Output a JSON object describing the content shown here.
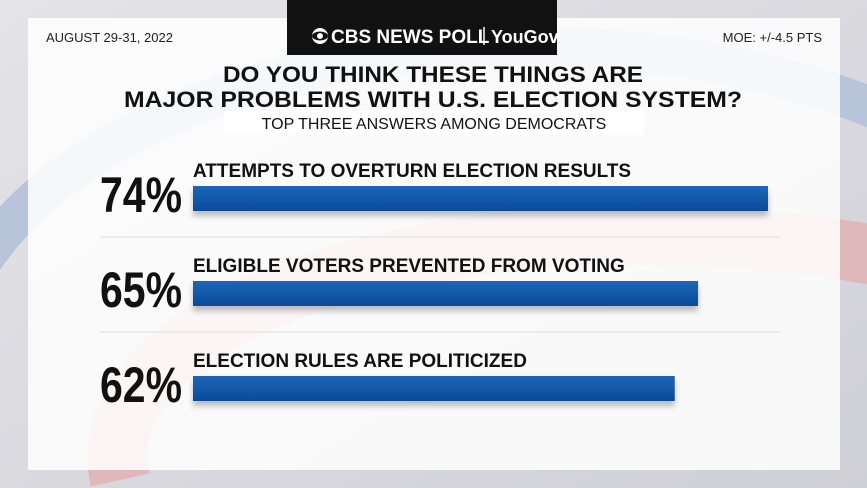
{
  "header": {
    "date": "AUGUST 29-31, 2022",
    "logo": "CBS NEWS POLL",
    "partner": "YouGov",
    "moe": "MOE: +/-4.5 PTS"
  },
  "chart_data": {
    "type": "bar",
    "title": [
      "DO YOU THINK THESE THINGS ARE",
      "MAJOR PROBLEMS WITH U.S. ELECTION SYSTEM?"
    ],
    "subtitle": "TOP THREE ANSWERS AMONG DEMOCRATS",
    "categories": [
      "ATTEMPTS TO OVERTURN ELECTION RESULTS",
      "ELIGIBLE VOTERS PREVENTED FROM VOTING",
      "ELECTION RULES ARE POLITICIZED"
    ],
    "values": [
      74,
      65,
      62
    ],
    "value_labels": [
      "74%",
      "65%",
      "62%"
    ],
    "color": "#0f56a8"
  }
}
